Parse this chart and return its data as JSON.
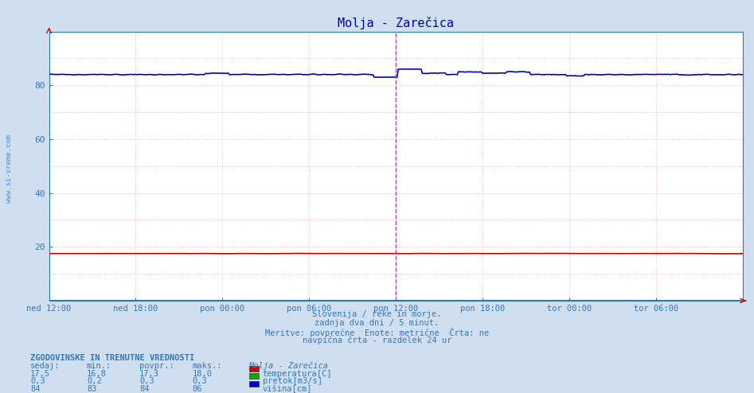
{
  "title": "Molja - Zarečica",
  "background_color": "#d0dff0",
  "plot_background": "#ffffff",
  "x_tick_labels": [
    "ned 12:00",
    "ned 18:00",
    "pon 00:00",
    "pon 06:00",
    "pon 12:00",
    "pon 18:00",
    "tor 00:00",
    "tor 06:00"
  ],
  "x_tick_positions": [
    0,
    72,
    144,
    216,
    288,
    360,
    432,
    504
  ],
  "total_points": 577,
  "ylim": [
    0,
    100
  ],
  "yticks": [
    20,
    40,
    60,
    80
  ],
  "temp_color": "#cc0000",
  "flow_color": "#00aa00",
  "height_color": "#0000cc",
  "grid_color_h": "#ffaaaa",
  "grid_color_v": "#ffaaaa",
  "axis_color": "#3377bb",
  "title_color": "#0000cc",
  "text_color": "#3377bb",
  "vline_color": "#ff00ff",
  "vline_x": 288,
  "subtitle_line1": "Slovenija / reke in morje.",
  "subtitle_line2": "zadnja dva dni / 5 minut.",
  "subtitle_line3": "Meritve: povprečne  Enote: metrične  Črta: ne",
  "subtitle_line4": "navpična črta - razdelek 24 ur",
  "table_header": "ZGODOVINSKE IN TRENUTNE VREDNOSTI",
  "col_sedaj": "sedaj:",
  "col_min": "min.:",
  "col_povpr": "povpr.:",
  "col_maks": "maks.:",
  "station_name": "Molja - Zarečica",
  "label_temp": "temperatura[C]",
  "label_flow": "pretok[m3/s]",
  "label_height": "višina[cm]",
  "logo_text": "www.si-vreme.com",
  "temp_value": "17,5",
  "temp_min": "16,8",
  "temp_avg": "17,3",
  "temp_max": "18,0",
  "flow_value": "0,3",
  "flow_min": "0,2",
  "flow_avg": "0,3",
  "flow_max": "0,3",
  "height_value": "84",
  "height_min": "83",
  "height_avg": "84",
  "height_max": "86"
}
